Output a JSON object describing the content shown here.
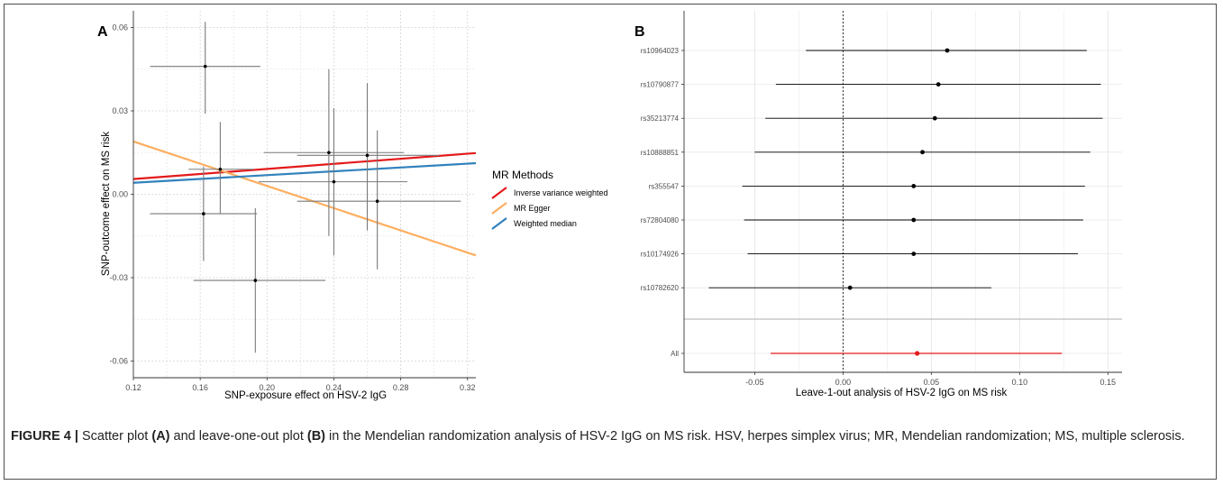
{
  "chart_data": [
    {
      "panel": "A",
      "type": "scatter",
      "xlabel": "SNP-exposure effect on HSV-2 IgG",
      "ylabel": "SNP-outcome effect on MS risk",
      "xlim": [
        0.12,
        0.325
      ],
      "ylim": [
        -0.066,
        0.066
      ],
      "xticks": [
        0.12,
        0.16,
        0.2,
        0.24,
        0.28,
        0.32
      ],
      "xtick_labels": [
        "0.12",
        "0.16",
        "0.20",
        "0.24",
        "0.28",
        "0.32"
      ],
      "yticks": [
        -0.06,
        -0.03,
        0.0,
        0.03,
        0.06
      ],
      "ytick_labels": [
        "-0.06",
        "-0.03",
        "0.00",
        "0.03",
        "0.06"
      ],
      "grid": true,
      "points": [
        {
          "x": 0.163,
          "y": 0.046,
          "x_lo": 0.13,
          "x_hi": 0.196,
          "y_lo": 0.029,
          "y_hi": 0.062
        },
        {
          "x": 0.172,
          "y": 0.009,
          "x_lo": 0.153,
          "x_hi": 0.192,
          "y_lo": -0.007,
          "y_hi": 0.026
        },
        {
          "x": 0.162,
          "y": -0.007,
          "x_lo": 0.13,
          "x_hi": 0.194,
          "y_lo": -0.024,
          "y_hi": 0.01
        },
        {
          "x": 0.193,
          "y": -0.031,
          "x_lo": 0.156,
          "x_hi": 0.235,
          "y_lo": -0.057,
          "y_hi": -0.005
        },
        {
          "x": 0.237,
          "y": 0.015,
          "x_lo": 0.198,
          "x_hi": 0.282,
          "y_lo": -0.015,
          "y_hi": 0.045
        },
        {
          "x": 0.24,
          "y": 0.0045,
          "x_lo": 0.195,
          "x_hi": 0.284,
          "y_lo": -0.022,
          "y_hi": 0.031
        },
        {
          "x": 0.26,
          "y": 0.014,
          "x_lo": 0.218,
          "x_hi": 0.303,
          "y_lo": -0.013,
          "y_hi": 0.04
        },
        {
          "x": 0.266,
          "y": -0.0025,
          "x_lo": 0.218,
          "x_hi": 0.316,
          "y_lo": -0.027,
          "y_hi": 0.023
        }
      ],
      "lines": [
        {
          "name": "Inverse variance weighted",
          "color": "#e41a1c",
          "slope": 0.0456
        },
        {
          "name": "MR Egger",
          "color": "#fdae61",
          "slope": -0.2,
          "intercept": 0.043
        },
        {
          "name": "Weighted median",
          "color": "#3182bd",
          "slope": 0.0344
        }
      ],
      "legend": {
        "title": "MR Methods",
        "position": "right"
      }
    },
    {
      "panel": "B",
      "type": "forest",
      "xlabel": "Leave-1-out analysis of HSV-2 IgG on MS risk",
      "xlim": [
        -0.09,
        0.158
      ],
      "xticks": [
        -0.05,
        0.0,
        0.05,
        0.1,
        0.15
      ],
      "xtick_labels": [
        "-0.05",
        "0.00",
        "0.05",
        "0.10",
        "0.15"
      ],
      "reference_line": 0,
      "rows": [
        {
          "label": "rs10964023",
          "estimate": 0.059,
          "lo": -0.021,
          "hi": 0.138
        },
        {
          "label": "rs10790877",
          "estimate": 0.054,
          "lo": -0.038,
          "hi": 0.146
        },
        {
          "label": "rs35213774",
          "estimate": 0.052,
          "lo": -0.044,
          "hi": 0.147
        },
        {
          "label": "rs10888851",
          "estimate": 0.045,
          "lo": -0.05,
          "hi": 0.14
        },
        {
          "label": "rs355547",
          "estimate": 0.04,
          "lo": -0.057,
          "hi": 0.137
        },
        {
          "label": "rs72804080",
          "estimate": 0.04,
          "lo": -0.056,
          "hi": 0.136
        },
        {
          "label": "rs10174926",
          "estimate": 0.04,
          "lo": -0.054,
          "hi": 0.133
        },
        {
          "label": "rs10782620",
          "estimate": 0.004,
          "lo": -0.076,
          "hi": 0.084
        }
      ],
      "summary": {
        "label": "All",
        "estimate": 0.042,
        "lo": -0.041,
        "hi": 0.124,
        "color": "#e41a1c"
      }
    }
  ],
  "caption": {
    "figure_label": "FIGURE 4 |",
    "part1": " Scatter plot ",
    "ref_a": "(A)",
    "part2": " and leave-one-out plot ",
    "ref_b": "(B)",
    "part3": " in the Mendelian randomization analysis of HSV-2 IgG on MS risk. HSV, herpes simplex virus; MR, Mendelian randomization; MS, multiple sclerosis."
  }
}
